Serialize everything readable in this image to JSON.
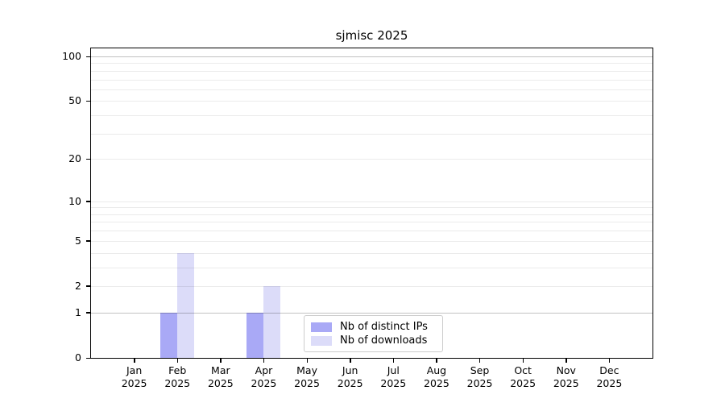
{
  "title": "sjmisc 2025",
  "chart_data": {
    "type": "bar",
    "title": "sjmisc 2025",
    "categories": [
      "Jan 2025",
      "Feb 2025",
      "Mar 2025",
      "Apr 2025",
      "May 2025",
      "Jun 2025",
      "Jul 2025",
      "Aug 2025",
      "Sep 2025",
      "Oct 2025",
      "Nov 2025",
      "Dec 2025"
    ],
    "series": [
      {
        "name": "Nb of distinct IPs",
        "color": "#a9a9f6",
        "values": [
          0,
          1,
          0,
          1,
          0,
          0,
          0,
          0,
          0,
          0,
          0,
          0
        ]
      },
      {
        "name": "Nb of downloads",
        "color": "#dcdcf9",
        "values": [
          0,
          4,
          0,
          2,
          0,
          0,
          0,
          0,
          0,
          0,
          0,
          0
        ]
      }
    ],
    "xlabel": "",
    "ylabel": "",
    "y_scale": "log1p",
    "ylim": [
      0,
      100
    ],
    "y_ticks": [
      0,
      1,
      2,
      5,
      10,
      20,
      50,
      100
    ],
    "y_gridlines_minor": [
      2,
      3,
      4,
      5,
      6,
      7,
      8,
      9,
      10,
      20,
      30,
      40,
      50,
      60,
      70,
      80,
      90
    ],
    "y_gridlines_major": [
      1,
      100
    ],
    "grid": true,
    "legend_position": "lower center (inside plot)"
  },
  "legend": {
    "items": [
      "Nb of distinct IPs",
      "Nb of downloads"
    ]
  },
  "colors": {
    "ips_bar": "#a9a9f6",
    "downloads_bar": "#dcdcf9",
    "plot_border": "#000000",
    "legend_border": "#cccccc",
    "grid_minor": "#ebebeb",
    "grid_major": "#c4c4c4"
  }
}
